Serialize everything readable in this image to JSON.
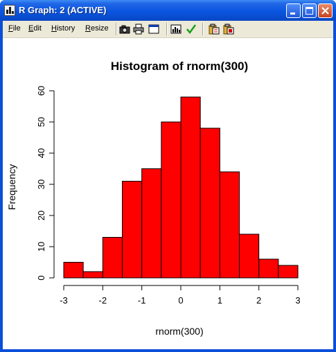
{
  "window": {
    "title": "R Graph: 2 (ACTIVE)"
  },
  "menu": {
    "items": [
      {
        "label": "File"
      },
      {
        "label": "Edit"
      },
      {
        "label": "History"
      },
      {
        "label": "Resize"
      }
    ]
  },
  "toolbar": {
    "icons": [
      "camera-icon",
      "print-icon",
      "window-icon",
      "chart-icon",
      "check-icon",
      "paste-icon",
      "paste-special-icon"
    ]
  },
  "colors": {
    "bar_fill": "#ff0000",
    "bar_stroke": "#000000",
    "title_bar": "#0a55e0",
    "check_green": "#1aa01a"
  },
  "chart_data": {
    "type": "bar",
    "title": "Histogram of rnorm(300)",
    "xlabel": "rnorm(300)",
    "ylabel": "Frequency",
    "bins": [
      {
        "from": -3.0,
        "to": -2.5,
        "count": 5
      },
      {
        "from": -2.5,
        "to": -2.0,
        "count": 2
      },
      {
        "from": -2.0,
        "to": -1.5,
        "count": 13
      },
      {
        "from": -1.5,
        "to": -1.0,
        "count": 31
      },
      {
        "from": -1.0,
        "to": -0.5,
        "count": 35
      },
      {
        "from": -0.5,
        "to": 0.0,
        "count": 50
      },
      {
        "from": 0.0,
        "to": 0.5,
        "count": 58
      },
      {
        "from": 0.5,
        "to": 1.0,
        "count": 48
      },
      {
        "from": 1.0,
        "to": 1.5,
        "count": 34
      },
      {
        "from": 1.5,
        "to": 2.0,
        "count": 14
      },
      {
        "from": 2.0,
        "to": 2.5,
        "count": 6
      },
      {
        "from": 2.5,
        "to": 3.0,
        "count": 4
      }
    ],
    "xlim": [
      -3,
      3
    ],
    "ylim": [
      0,
      60
    ],
    "x_ticks": [
      -3,
      -2,
      -1,
      0,
      1,
      2,
      3
    ],
    "y_ticks": [
      0,
      10,
      20,
      30,
      40,
      50,
      60
    ],
    "grid": false,
    "legend": "none"
  }
}
